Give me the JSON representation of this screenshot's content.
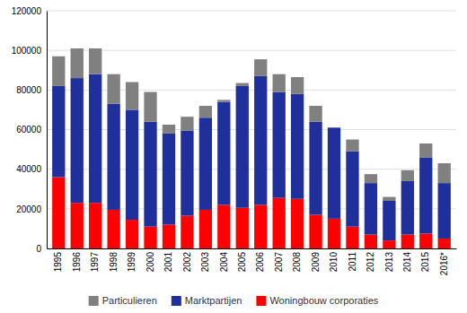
{
  "chart_data": {
    "type": "bar",
    "stacked": true,
    "categories": [
      "1995",
      "1996",
      "1997",
      "1998",
      "1999",
      "2000",
      "2001",
      "2002",
      "2003",
      "2004",
      "2005",
      "2006",
      "2007",
      "2008",
      "2009",
      "2010",
      "2011",
      "2012",
      "2013",
      "2014",
      "2015",
      "2016*"
    ],
    "series": [
      {
        "name": "Woningbouw corporaties",
        "color": "#ff0000",
        "values": [
          36000,
          23000,
          23000,
          19500,
          14500,
          11000,
          12000,
          16500,
          19500,
          22000,
          20500,
          22000,
          25500,
          25000,
          17000,
          15000,
          11000,
          7000,
          4000,
          7000,
          7500,
          5000
        ]
      },
      {
        "name": "Marktpartijen",
        "color": "#1f2f9c",
        "values": [
          46000,
          63000,
          65000,
          53500,
          55500,
          53000,
          46000,
          43000,
          46500,
          52000,
          61500,
          65000,
          53500,
          53000,
          47000,
          46000,
          38000,
          26000,
          20000,
          27000,
          38500,
          28000
        ]
      },
      {
        "name": "Particulieren",
        "color": "#808080",
        "values": [
          15000,
          15000,
          13000,
          15000,
          14000,
          15000,
          4500,
          7000,
          6000,
          1000,
          1500,
          8500,
          9000,
          8500,
          8000,
          0,
          6000,
          4500,
          2000,
          5500,
          7000,
          10000
        ]
      }
    ],
    "ylim": [
      0,
      120000
    ],
    "yticks": [
      0,
      20000,
      40000,
      60000,
      80000,
      100000,
      120000
    ],
    "grid": true,
    "legend": "bottom"
  }
}
